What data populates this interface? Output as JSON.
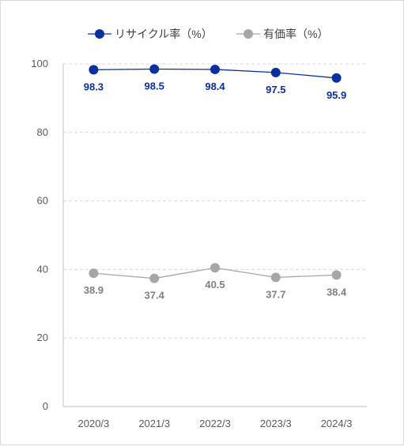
{
  "chart_data": {
    "type": "line",
    "categories": [
      "2020/3",
      "2021/3",
      "2022/3",
      "2023/3",
      "2024/3"
    ],
    "series": [
      {
        "name": "リサイクル率（%）",
        "values": [
          98.3,
          98.5,
          98.4,
          97.5,
          95.9
        ],
        "color": "#0b2f9f"
      },
      {
        "name": "有価率（%）",
        "values": [
          38.9,
          37.4,
          40.5,
          37.7,
          38.4
        ],
        "color": "#a6a6a6",
        "label_color": "#7f7f7f"
      }
    ],
    "yticks": [
      "0",
      "20",
      "40",
      "60",
      "80",
      "100"
    ],
    "ylim": [
      0,
      100
    ],
    "grid": "dashed-horizontal",
    "legend": "top-center",
    "data_labels": "below-points"
  }
}
